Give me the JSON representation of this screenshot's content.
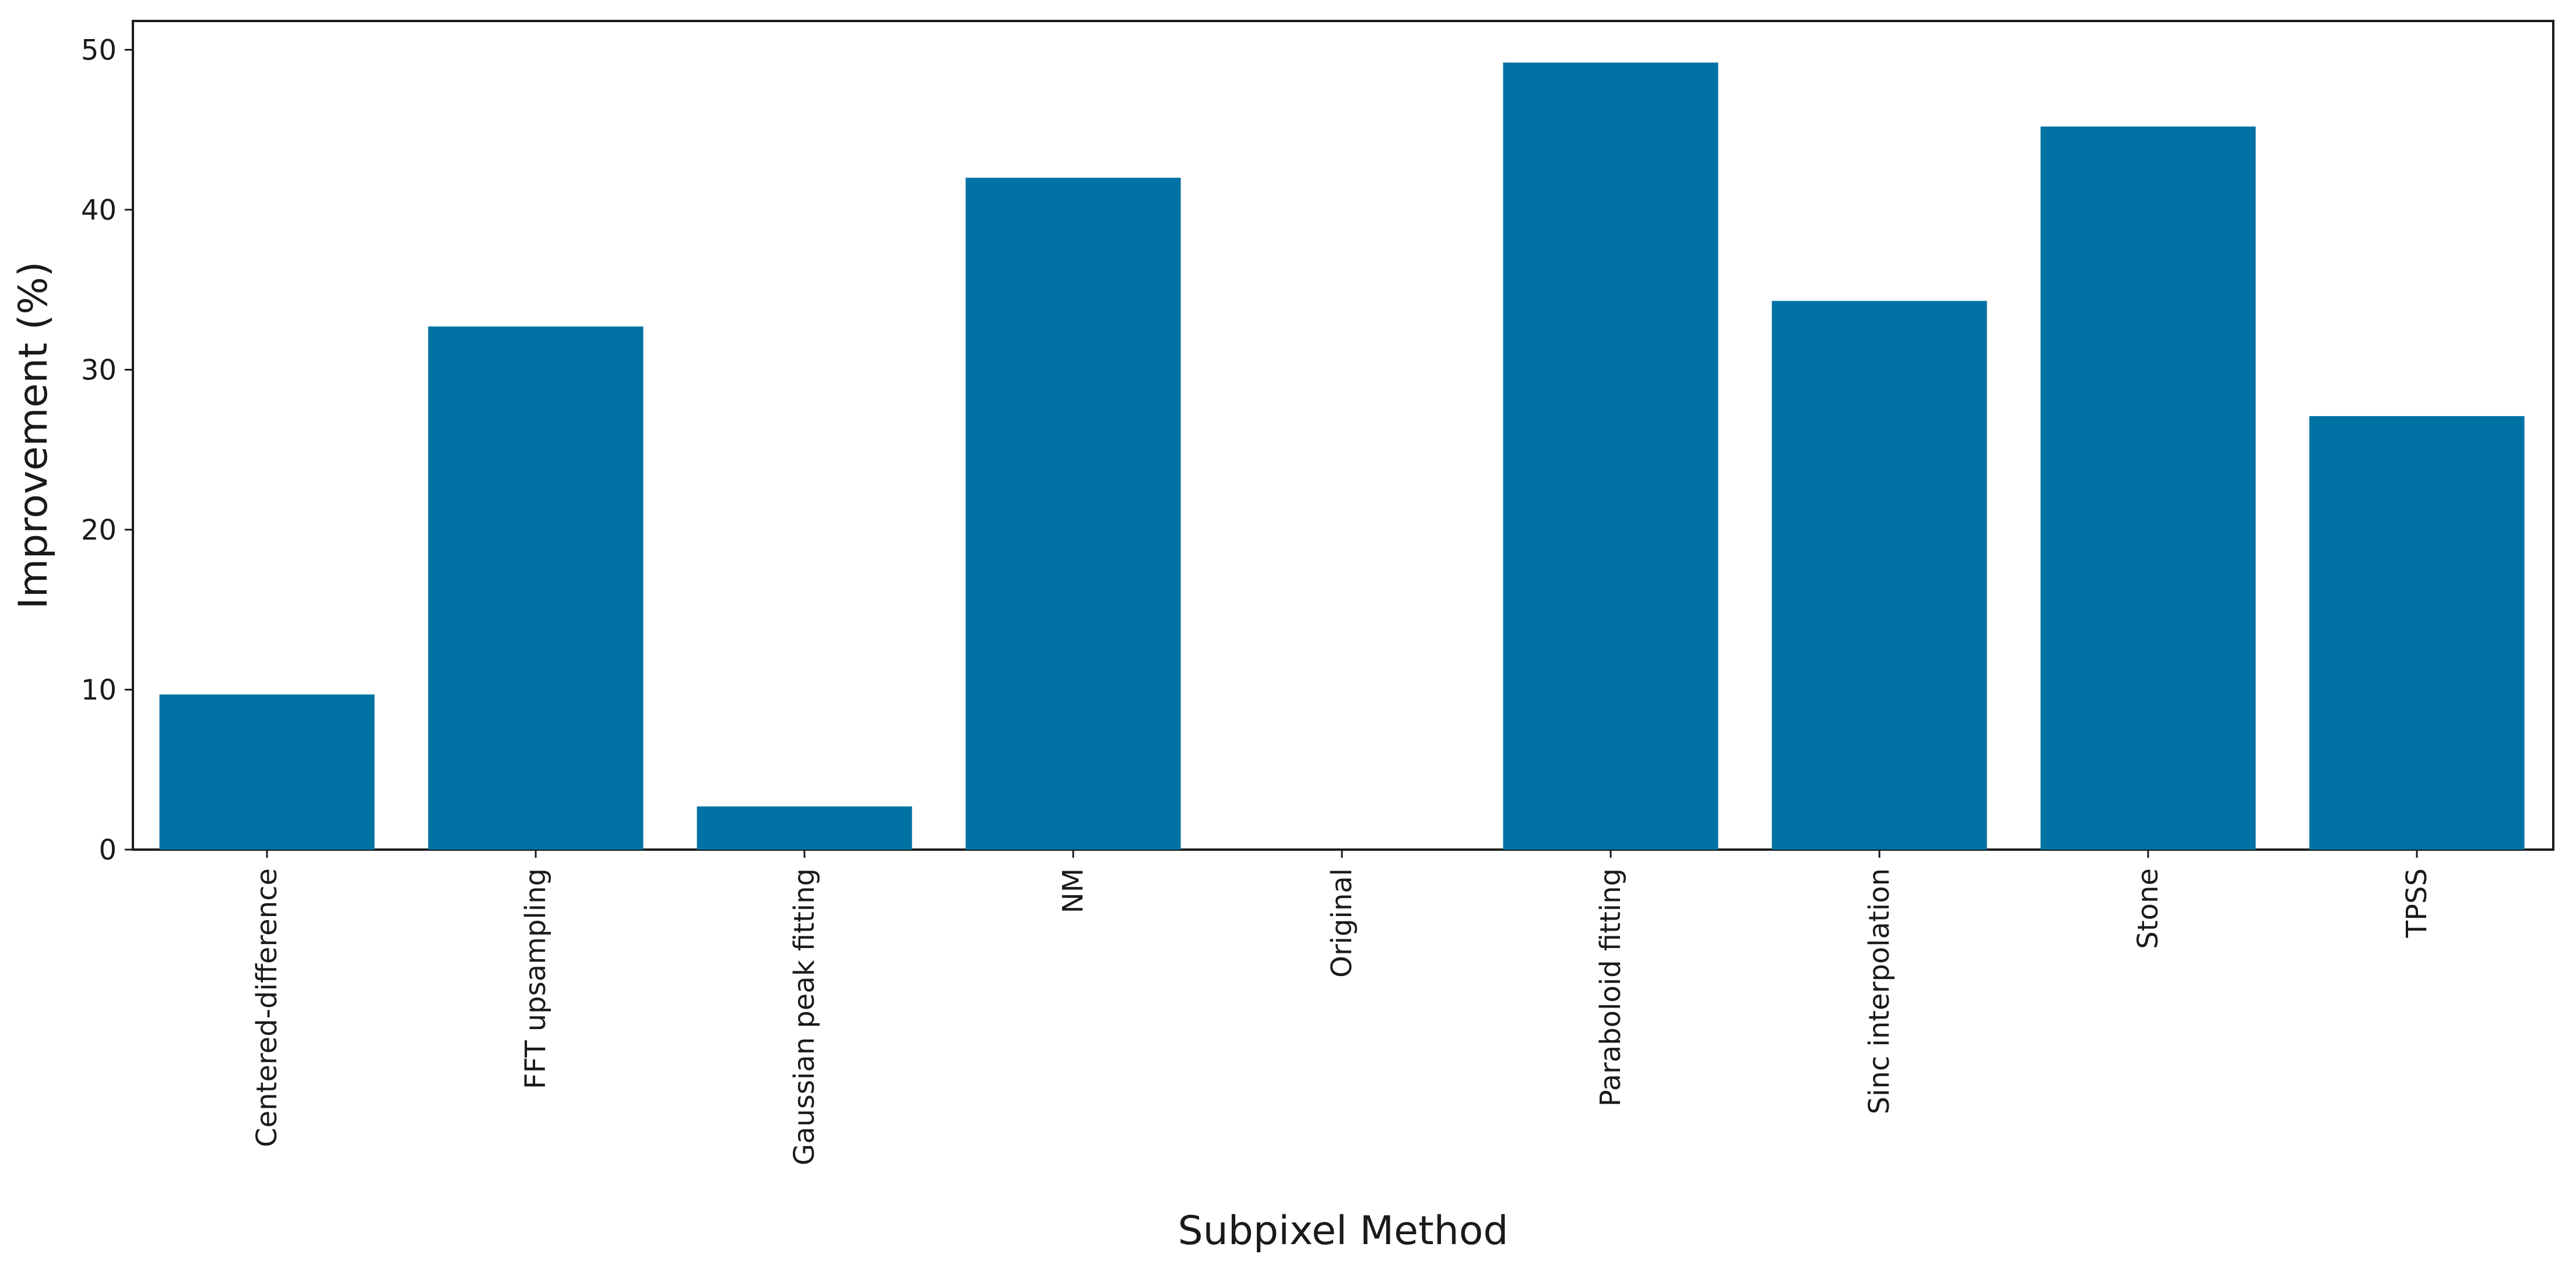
{
  "chart_data": {
    "type": "bar",
    "xlabel": "Subpixel Method",
    "ylabel": "Improvement (%)",
    "categories": [
      "Centered-difference",
      "FFT upsampling",
      "Gaussian peak fitting",
      "NM",
      "Original",
      "Paraboloid fitting",
      "Sinc interpolation",
      "Stone",
      "TPSS"
    ],
    "values": [
      9.7,
      32.7,
      2.7,
      42.0,
      0.0,
      49.2,
      34.3,
      45.2,
      27.1
    ],
    "ylim": [
      0,
      51.8
    ],
    "yticks": [
      0,
      10,
      20,
      30,
      40,
      50
    ],
    "bar_color": "#0072A3",
    "grid": false,
    "legend": "none"
  }
}
